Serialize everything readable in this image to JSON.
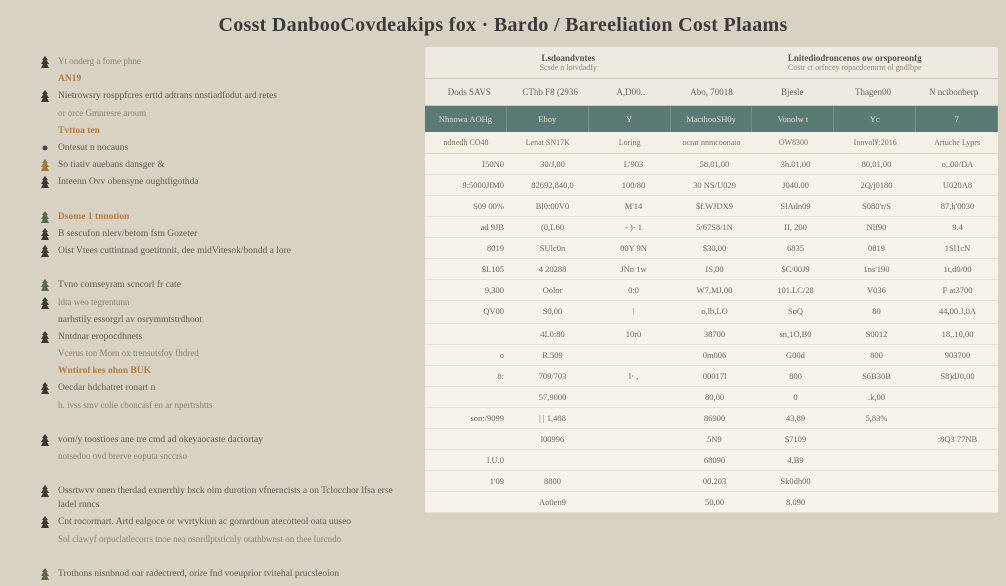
{
  "header": {
    "title": "Cosst DanbooCovdeakips fox · Bardo / Bareeliation Cost Plaams"
  },
  "sidebar": {
    "items": [
      {
        "marker": "tree-dark",
        "text": "Yt onderg a fome phne",
        "cls": "small"
      },
      {
        "marker": "",
        "text": "AN19",
        "cls": "accent"
      },
      {
        "marker": "tree-dark",
        "text": "Nietrowsry rosppfcres erttd adtrans nnstiadfodut ard retes",
        "cls": ""
      },
      {
        "marker": "",
        "text": "or orce Gmnresre aroum",
        "cls": "small"
      },
      {
        "marker": "",
        "text": "Tvttoa ten",
        "cls": "accent"
      },
      {
        "marker": "dot",
        "text": "Ontesut n nocauns",
        "cls": ""
      },
      {
        "marker": "tree-gold",
        "text": "So tiativ auebans dansger &",
        "cls": ""
      },
      {
        "marker": "tree-dark",
        "text": "Inteenn Ovv obensyne oughtligothda",
        "cls": ""
      },
      {
        "marker": "",
        "text": "",
        "cls": ""
      },
      {
        "marker": "tree-green",
        "text": "Dsome  1 tnnotion",
        "cls": "accent"
      },
      {
        "marker": "tree-dark",
        "text": "B sescufon nlerv/betom fsm Gozeter",
        "cls": ""
      },
      {
        "marker": "tree-dark",
        "text": "Oist Vtees cuttintnad goetitnnit, dee midVitesok/bondd a lore",
        "cls": ""
      },
      {
        "marker": "",
        "text": "",
        "cls": ""
      },
      {
        "marker": "tree-green",
        "text": "Tvno cornseyram scncorl fr cate",
        "cls": ""
      },
      {
        "marker": "tree-dark",
        "text": "ldta weo tegrentunn",
        "cls": "small"
      },
      {
        "marker": "",
        "text": "narhstily essorgrl av osrymmtstrdhoot",
        "cls": ""
      },
      {
        "marker": "tree-dark",
        "text": "Nntdnar eropocdhnets",
        "cls": ""
      },
      {
        "marker": "",
        "text": "Vcerus ton Morn ox trensutsfoy fhdred",
        "cls": "small"
      },
      {
        "marker": "",
        "text": "Wntirol kes ohon BUK",
        "cls": "accent"
      },
      {
        "marker": "tree-dark",
        "text": "Oecdar hdchatret ronart n",
        "cls": ""
      },
      {
        "marker": "",
        "text": "h. ivss smv colie cboncasf en ar npertrshtts",
        "cls": "small"
      },
      {
        "marker": "",
        "text": "",
        "cls": ""
      },
      {
        "marker": "tree-dark",
        "text": "vom/y toostioes ane tre cmd ad okeyaocaste dactortay",
        "cls": ""
      },
      {
        "marker": "",
        "text": "notsedoo ovd brerve eoputa snccrso",
        "cls": "small"
      },
      {
        "marker": "",
        "text": "",
        "cls": ""
      },
      {
        "marker": "tree-dark",
        "text": "Ossrtwvv onen therdad exnerrhiy bsck oim durotion vfnerncists a on Tclocchor lfsa erse ladel rnncs",
        "cls": ""
      },
      {
        "marker": "tree-dark",
        "text": "Cnt rocormart. Artd ealgoce or wvrtykiun ac gornrdoun atecotteol oata uuseo",
        "cls": ""
      },
      {
        "marker": "",
        "text": "Sol clawyf orpuclatlecorrs tnoe nea osnrdlptsticnly otathbwnst on thee lurcndo",
        "cls": "small"
      },
      {
        "marker": "",
        "text": "",
        "cls": ""
      },
      {
        "marker": "tree-green",
        "text": "Trothons nisnbnod oar radectrerd, orire fnd voeuprior tvitehal prucsleoion",
        "cls": ""
      }
    ]
  },
  "table": {
    "superhead": {
      "left": {
        "title": "Lsdoandvntes",
        "sub": "Scsde n lotvdadfy"
      },
      "right": {
        "title": "Lnitediodroncenos ow orsporeonfg",
        "sub": "Costr ct orfncey ropacdcemrnt ol gndlbpe"
      }
    },
    "head1": [
      "Dods SAVS",
      "CThb F8 (2936",
      "A,D00..",
      "Abo, 70018",
      "Bjesle",
      "Thagen00",
      "N nctbonberp"
    ],
    "head2": [
      "Nhnowa AOHg",
      "Eboy",
      "Y",
      "MacthooSH0y",
      "Vonolw t",
      "Yc",
      "7"
    ],
    "head3": [
      "ndttedh CO48",
      "Lenat SN17K",
      "Loring",
      "ocrar nnmcoonato",
      "OW8300",
      "Innvol¥:2016",
      "Artuche Lyprs"
    ],
    "rows": [
      [
        "I50N0",
        "30/J,00",
        "L'903",
        "58,01,00",
        "3h.01,00",
        "80,01,00",
        "o,.00/DA"
      ],
      [
        "9:5000JfM0",
        "82692,840,0",
        "100/80",
        "30 NS/U029",
        "J040.00",
        "2Q/j0180",
        "U020A8"
      ],
      [
        "S09 00%",
        "Bl0:00V0",
        "M'14",
        "$f.WJDX9",
        "SlAdn09",
        "S080'r/S",
        "87,h'0030"
      ],
      [
        "ad 9JB",
        "(0,L60",
        "- )- 1",
        "5/67S8/1N",
        "II, 200",
        "Nlf90",
        "9.4"
      ],
      [
        "8019",
        "SUlc0n",
        "00Y 9N",
        "$30,00",
        "6835",
        "0819",
        "1Sl1cN"
      ],
      [
        "$L105",
        "4  20288",
        "JNn 1w",
        "IS,00",
        "$C/00J9",
        "1ns'190",
        "1t,d0/00"
      ],
      [
        "9,300",
        "Oolor",
        "0:0",
        "W7,MJ,00",
        "101.LC/28",
        "V036",
        "F at3700"
      ],
      [
        "QV00",
        "S0,00",
        "︱",
        "o,lb,LO",
        "SoQ",
        "80",
        "44,00.J,0A"
      ],
      [
        "",
        "4L0:80",
        "10r0",
        "38700",
        "sn,1O,B0",
        "S0012",
        "18,.10,00"
      ],
      [
        "o",
        "R.509",
        "",
        "0m006",
        "G00d",
        "800",
        "903700"
      ],
      [
        "8:",
        "709/703",
        "l·  ,",
        "00017l",
        "800",
        "S6B30B",
        "S8)dJ0,00"
      ],
      [
        "",
        "57,9000",
        "",
        "80,00",
        "0",
        ".k,00",
        ""
      ],
      [
        "son:/9099",
        "|  | 1,488",
        "",
        "86900",
        "43,89",
        "5,83%",
        ""
      ],
      [
        "",
        "l00996",
        "",
        "5N9",
        "$7109",
        "",
        ":8Q3 77NB"
      ],
      [
        "l.U.0",
        "",
        "",
        "68090",
        "4,B9",
        "",
        ""
      ],
      [
        "1'09",
        "8800",
        "",
        "00.203",
        "Sk0dh00",
        "",
        ""
      ],
      [
        "",
        "Ao0en9",
        "",
        "50,00",
        "8.090",
        "",
        ""
      ]
    ]
  },
  "colors": {
    "bg": "#d8d2c4",
    "panel": "#eeeae0",
    "teal": "#5a7a75",
    "text": "#5f5a4e",
    "accent": "#b87d3a"
  }
}
